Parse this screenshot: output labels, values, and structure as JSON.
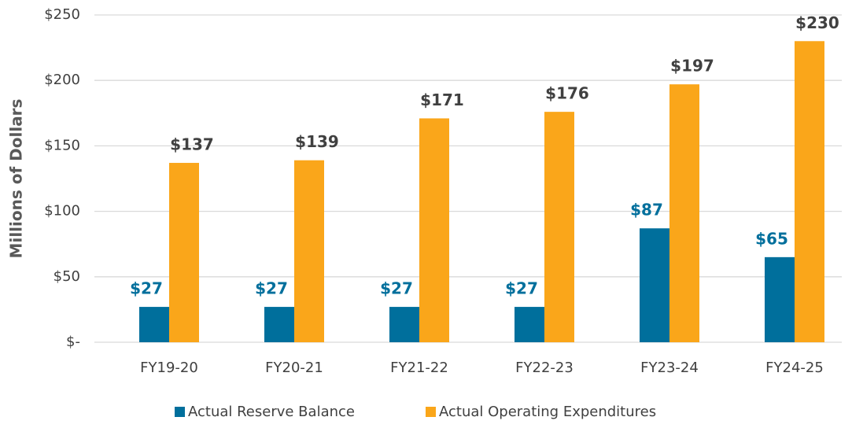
{
  "chart_data": {
    "type": "bar",
    "y_label": "Millions of Dollars",
    "categories": [
      "FY19-20",
      "FY20-21",
      "FY21-22",
      "FY22-23",
      "FY23-24",
      "FY24-25"
    ],
    "series": [
      {
        "name": "Actual Reserve Balance",
        "color": "#006f9c",
        "values": [
          27,
          27,
          27,
          27,
          87,
          65
        ],
        "value_labels": [
          "$27",
          "$27",
          "$27",
          "$27",
          "$87",
          "$65"
        ]
      },
      {
        "name": "Actual Operating Expenditures",
        "color": "#faa61a",
        "values": [
          137,
          139,
          171,
          176,
          197,
          230
        ],
        "value_labels": [
          "$137",
          "$139",
          "$171",
          "$176",
          "$197",
          "$230"
        ]
      }
    ],
    "ylim": [
      0,
      250
    ],
    "yticks": [
      {
        "value": 0,
        "label": "$-"
      },
      {
        "value": 50,
        "label": "$50"
      },
      {
        "value": 100,
        "label": "$100"
      },
      {
        "value": 150,
        "label": "$150"
      },
      {
        "value": 200,
        "label": "$200"
      },
      {
        "value": 250,
        "label": "$250"
      }
    ],
    "grid": true,
    "legend": "bottom"
  }
}
